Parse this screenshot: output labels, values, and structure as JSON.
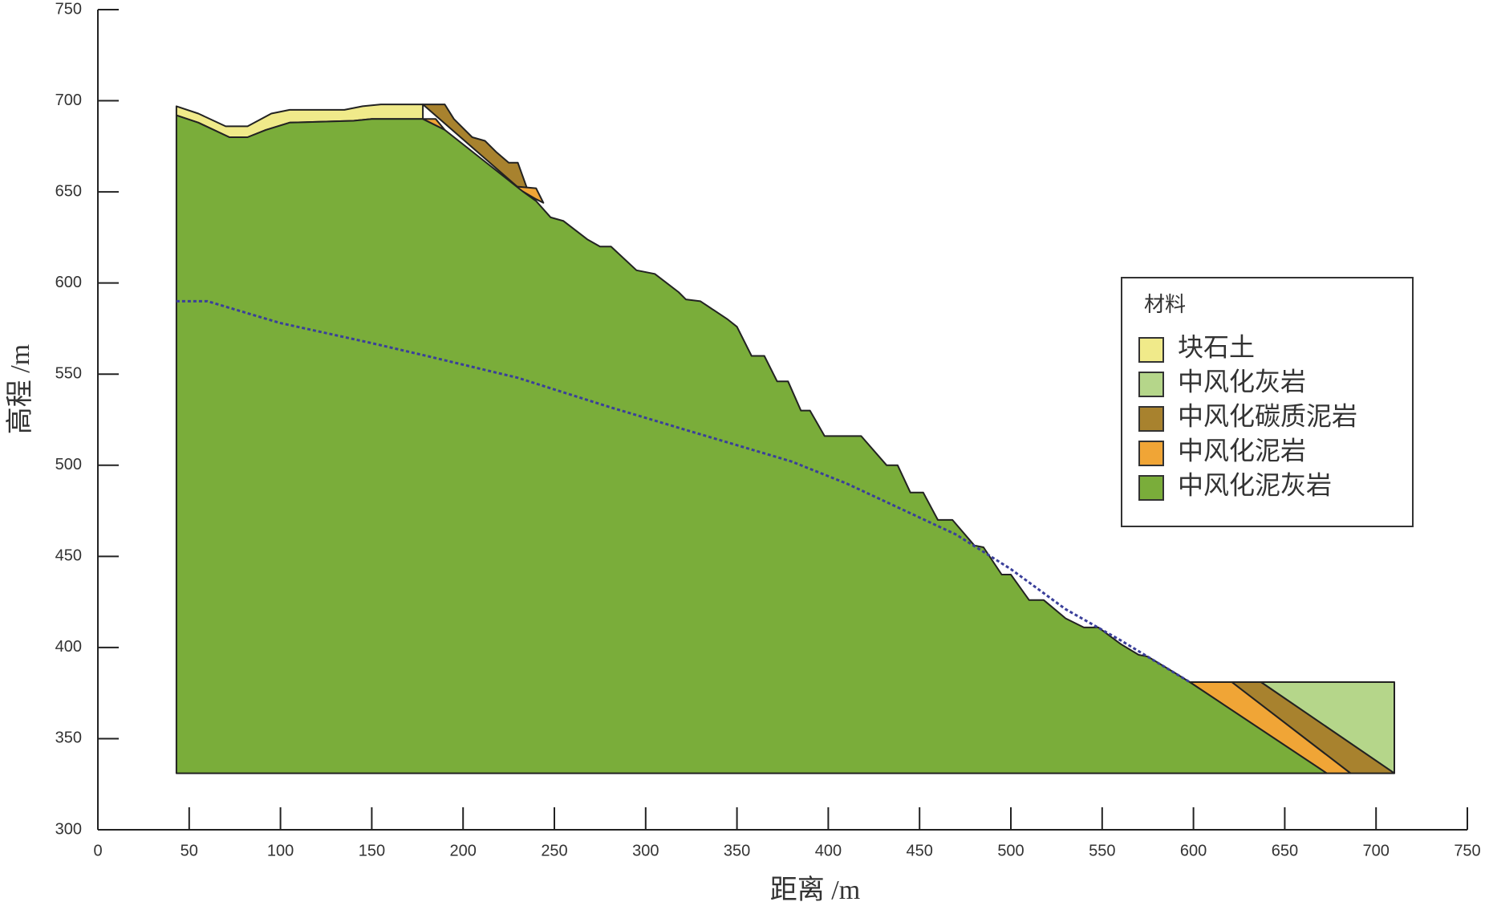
{
  "chart_data": {
    "type": "profile",
    "xlabel": "距离 /m",
    "ylabel": "高程 /m",
    "xlim": [
      0,
      750
    ],
    "xticks": [
      0,
      50,
      100,
      150,
      200,
      250,
      300,
      350,
      400,
      450,
      500,
      550,
      600,
      650,
      700,
      750
    ],
    "ylim": [
      300,
      750
    ],
    "yticks": [
      300,
      350,
      400,
      450,
      500,
      550,
      600,
      650,
      700,
      750
    ],
    "legend_title": "材料",
    "legend": "right",
    "series": [
      {
        "name": "块石土",
        "color": "#f0ea8a",
        "x": [
          43,
          55,
          70,
          82,
          95,
          105,
          135,
          145,
          155,
          178,
          178,
          150,
          140,
          105,
          92,
          82,
          72,
          55,
          43
        ],
        "values": [
          697,
          693,
          686,
          686,
          693,
          695,
          695,
          697,
          698,
          698,
          690,
          690,
          689,
          688,
          684,
          680,
          680,
          688,
          692
        ]
      },
      {
        "name": "中风化灰岩",
        "color": "#b5d68a",
        "x": [
          637,
          710,
          710
        ],
        "values": [
          381,
          381,
          331
        ]
      },
      {
        "name": "中风化碳质泥岩",
        "color": "#a8822e",
        "x": [
          178,
          190,
          195,
          205,
          212,
          218,
          225,
          230,
          235,
          233,
          null,
          621,
          637,
          710,
          686
        ],
        "values": [
          698,
          698,
          690,
          680,
          678,
          672,
          666,
          666,
          652,
          650,
          null,
          381,
          381,
          331,
          331
        ]
      },
      {
        "name": "中风化泥岩",
        "color": "#f0a536",
        "x": [
          178,
          185,
          190,
          null,
          228,
          240,
          244,
          240,
          null,
          598,
          621,
          686,
          673
        ],
        "values": [
          690,
          690,
          684,
          null,
          653,
          652,
          644,
          646,
          null,
          381,
          381,
          331,
          331
        ]
      },
      {
        "name": "中风化泥灰岩",
        "color": "#7aad3a",
        "x": [
          43,
          55,
          72,
          82,
          92,
          105,
          140,
          150,
          178,
          190,
          233,
          240,
          248,
          255,
          268,
          275,
          281,
          295,
          305,
          318,
          322,
          330,
          345,
          350,
          358,
          365,
          372,
          378,
          385,
          390,
          398,
          418,
          432,
          438,
          445,
          452,
          460,
          468,
          480,
          485,
          495,
          500,
          510,
          518,
          530,
          540,
          548,
          560,
          570,
          575,
          590,
          598,
          673,
          43
        ],
        "values": [
          692,
          688,
          680,
          680,
          684,
          688,
          689,
          690,
          690,
          684,
          650,
          645,
          636,
          634,
          624,
          620,
          620,
          607,
          605,
          595,
          591,
          590,
          580,
          576,
          560,
          560,
          546,
          546,
          530,
          530,
          516,
          516,
          500,
          500,
          485,
          485,
          470,
          470,
          456,
          455,
          440,
          440,
          426,
          426,
          416,
          411,
          411,
          402,
          396,
          395,
          386,
          381,
          331,
          331
        ]
      }
    ],
    "water_line": {
      "color": "#3a3f9a",
      "x": [
        43,
        60,
        100,
        150,
        180,
        230,
        280,
        330,
        380,
        410,
        440,
        470,
        500,
        530,
        560,
        598
      ],
      "values": [
        590,
        590,
        578,
        567,
        560,
        548,
        532,
        517,
        502,
        490,
        476,
        462,
        443,
        421,
        404,
        381
      ]
    }
  }
}
